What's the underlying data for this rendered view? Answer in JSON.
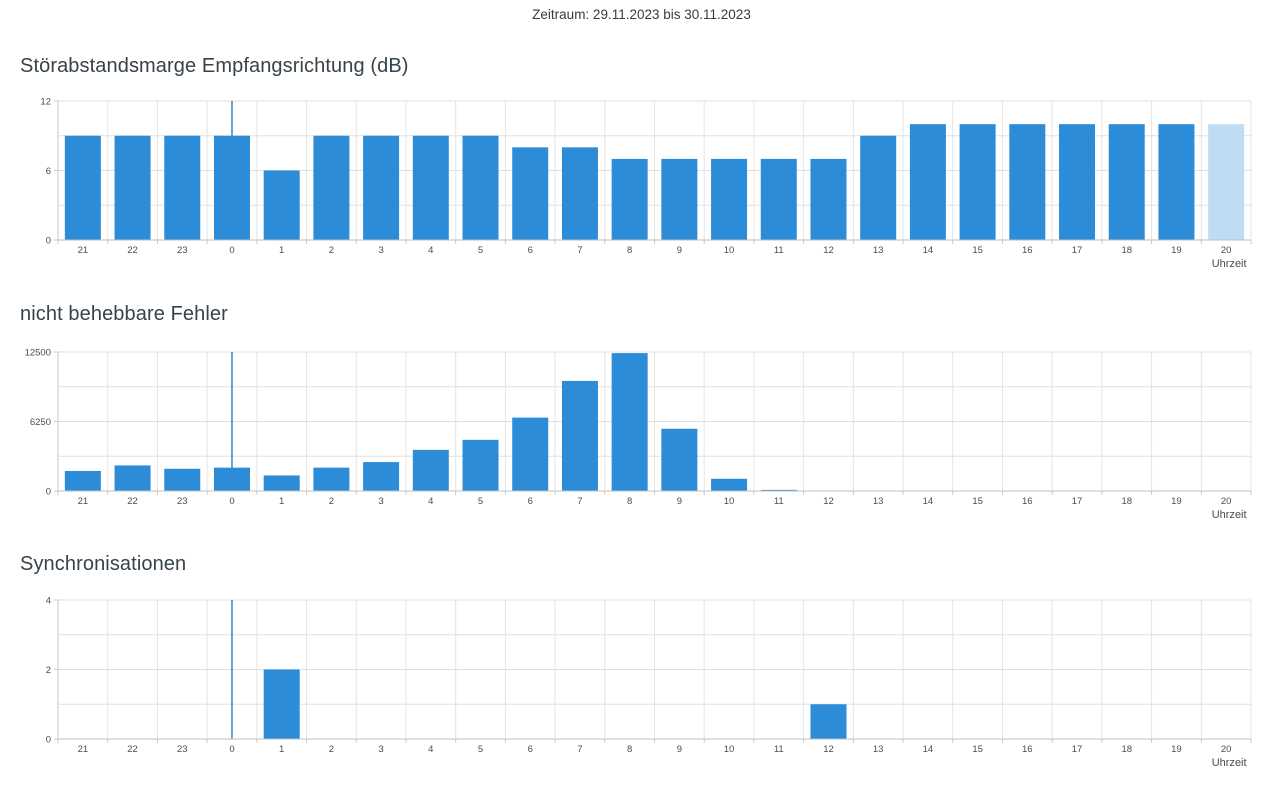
{
  "header": {
    "zeitraum": "Zeitraum: 29.11.2023 bis 30.11.2023"
  },
  "colors": {
    "bar": "#2d8cd8",
    "bar_light": "#bedcf3",
    "grid": "#e0e0e0",
    "grid_vertical": "#e4e4e4",
    "axis": "#bfbfbf",
    "tick": "#c8c8c8",
    "tick_text": "#434e57",
    "title_text": "#37424b",
    "midnight_line": "#3f8ecb"
  },
  "x_axis_label": "Uhrzeit",
  "chart_data": [
    {
      "type": "bar",
      "title": "Störabstandsmarge Empfangsrichtung (dB)",
      "categories": [
        "21",
        "22",
        "23",
        "0",
        "1",
        "2",
        "3",
        "4",
        "5",
        "6",
        "7",
        "8",
        "9",
        "10",
        "11",
        "12",
        "13",
        "14",
        "15",
        "16",
        "17",
        "18",
        "19",
        "20"
      ],
      "values": [
        9,
        9,
        9,
        9,
        6,
        9,
        9,
        9,
        9,
        8,
        8,
        7,
        7,
        7,
        7,
        7,
        9,
        10,
        10,
        10,
        10,
        10,
        10,
        10
      ],
      "light_bars": [
        23
      ],
      "ylim": [
        0,
        12
      ],
      "yticks": [
        0,
        6,
        12
      ],
      "grid_step": 3,
      "xlabel": "Uhrzeit",
      "midnight_marker_category": "0",
      "grid": "on",
      "legend": "none"
    },
    {
      "type": "bar",
      "title": "nicht behebbare Fehler",
      "categories": [
        "21",
        "22",
        "23",
        "0",
        "1",
        "2",
        "3",
        "4",
        "5",
        "6",
        "7",
        "8",
        "9",
        "10",
        "11",
        "12",
        "13",
        "14",
        "15",
        "16",
        "17",
        "18",
        "19",
        "20"
      ],
      "values": [
        1800,
        2300,
        2000,
        2100,
        1400,
        2100,
        2600,
        3700,
        4600,
        6600,
        9900,
        12400,
        5600,
        1100,
        100,
        40,
        0,
        0,
        0,
        0,
        0,
        0,
        0,
        0
      ],
      "light_bars": [],
      "ylim": [
        0,
        12500
      ],
      "yticks": [
        0,
        6250,
        12500
      ],
      "grid_step": 3125,
      "xlabel": "Uhrzeit",
      "midnight_marker_category": "0",
      "grid": "on",
      "legend": "none"
    },
    {
      "type": "bar",
      "title": "Synchronisationen",
      "categories": [
        "21",
        "22",
        "23",
        "0",
        "1",
        "2",
        "3",
        "4",
        "5",
        "6",
        "7",
        "8",
        "9",
        "10",
        "11",
        "12",
        "13",
        "14",
        "15",
        "16",
        "17",
        "18",
        "19",
        "20"
      ],
      "values": [
        0,
        0,
        0,
        0,
        2,
        0,
        0,
        0,
        0,
        0,
        0,
        0,
        0,
        0,
        0,
        1,
        0,
        0,
        0,
        0,
        0,
        0,
        0,
        0
      ],
      "light_bars": [],
      "ylim": [
        0,
        4
      ],
      "yticks": [
        0,
        2,
        4
      ],
      "grid_step": 1,
      "xlabel": "Uhrzeit",
      "midnight_marker_category": "0",
      "grid": "on",
      "legend": "none"
    }
  ]
}
